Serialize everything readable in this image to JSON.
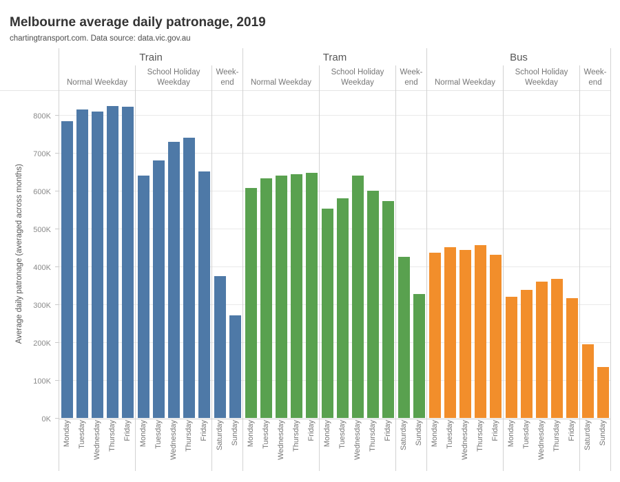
{
  "title": "Melbourne average daily patronage, 2019",
  "subtitle": "chartingtransport.com. Data source: data.vic.gov.au",
  "y_axis": {
    "title": "Average daily patronage (averaged across months)",
    "ticks": [
      "0K",
      "100K",
      "200K",
      "300K",
      "400K",
      "500K",
      "600K",
      "700K",
      "800K"
    ]
  },
  "chart_data": {
    "type": "bar",
    "title": "Melbourne average daily patronage, 2019",
    "ylabel": "Average daily patronage (averaged across months)",
    "values_unit": "thousands (K) of passengers per day",
    "ylim_k": [
      0,
      866
    ],
    "grid": "horizontal major gridlines every 100K",
    "legend": "none",
    "modes": [
      {
        "name": "Train",
        "color": "#4e79a7",
        "groups": [
          {
            "label": "Normal Weekday",
            "days": [
              "Monday",
              "Tuesday",
              "Wednesday",
              "Thursday",
              "Friday"
            ],
            "values": [
              785,
              815,
              810,
              825,
              822
            ]
          },
          {
            "label": "School Holiday Weekday",
            "days": [
              "Monday",
              "Tuesday",
              "Wednesday",
              "Thursday",
              "Friday"
            ],
            "values": [
              640,
              680,
              730,
              740,
              652
            ]
          },
          {
            "label": "Week-end",
            "days": [
              "Saturday",
              "Sunday"
            ],
            "values": [
              375,
              272
            ]
          }
        ]
      },
      {
        "name": "Tram",
        "color": "#59a14f",
        "groups": [
          {
            "label": "Normal Weekday",
            "days": [
              "Monday",
              "Tuesday",
              "Wednesday",
              "Thursday",
              "Friday"
            ],
            "values": [
              608,
              633,
              640,
              644,
              648
            ]
          },
          {
            "label": "School Holiday Weekday",
            "days": [
              "Monday",
              "Tuesday",
              "Wednesday",
              "Thursday",
              "Friday"
            ],
            "values": [
              554,
              580,
              640,
              601,
              573
            ]
          },
          {
            "label": "Week-end",
            "days": [
              "Saturday",
              "Sunday"
            ],
            "values": [
              425,
              327
            ]
          }
        ]
      },
      {
        "name": "Bus",
        "color": "#f28e2b",
        "groups": [
          {
            "label": "Normal Weekday",
            "days": [
              "Monday",
              "Tuesday",
              "Wednesday",
              "Thursday",
              "Friday"
            ],
            "values": [
              436,
              452,
              444,
              456,
              432
            ]
          },
          {
            "label": "School Holiday Weekday",
            "days": [
              "Monday",
              "Tuesday",
              "Wednesday",
              "Thursday",
              "Friday"
            ],
            "values": [
              320,
              338,
              361,
              368,
              316
            ]
          },
          {
            "label": "Week-end",
            "days": [
              "Saturday",
              "Sunday"
            ],
            "values": [
              194,
              135
            ]
          }
        ]
      }
    ]
  }
}
